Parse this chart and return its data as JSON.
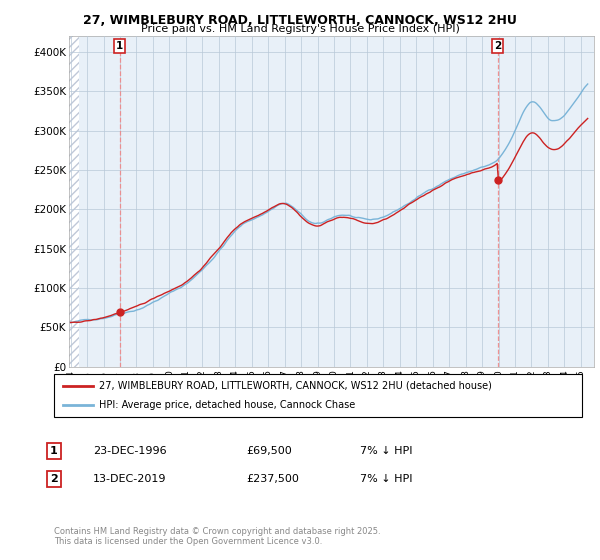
{
  "title_line1": "27, WIMBLEBURY ROAD, LITTLEWORTH, CANNOCK, WS12 2HU",
  "title_line2": "Price paid vs. HM Land Registry's House Price Index (HPI)",
  "ylim": [
    0,
    420000
  ],
  "yticks": [
    0,
    50000,
    100000,
    150000,
    200000,
    250000,
    300000,
    350000,
    400000
  ],
  "ytick_labels": [
    "£0",
    "£50K",
    "£100K",
    "£150K",
    "£200K",
    "£250K",
    "£300K",
    "£350K",
    "£400K"
  ],
  "hpi_color": "#7ab4d8",
  "price_color": "#cc2222",
  "chart_bg": "#e8f0f8",
  "sale1_t": 1996.97,
  "sale1_p": 69500,
  "sale2_t": 2019.95,
  "sale2_p": 237500,
  "legend_label1": "27, WIMBLEBURY ROAD, LITTLEWORTH, CANNOCK, WS12 2HU (detached house)",
  "legend_label2": "HPI: Average price, detached house, Cannock Chase",
  "note1_date": "23-DEC-1996",
  "note1_price": "£69,500",
  "note1_hpi": "7% ↓ HPI",
  "note2_date": "13-DEC-2019",
  "note2_price": "£237,500",
  "note2_hpi": "7% ↓ HPI",
  "footer": "Contains HM Land Registry data © Crown copyright and database right 2025.\nThis data is licensed under the Open Government Licence v3.0.",
  "hatch_color": "#c0c8d8",
  "grid_color": "#b8c8d8",
  "dashed_color": "#ee8888"
}
